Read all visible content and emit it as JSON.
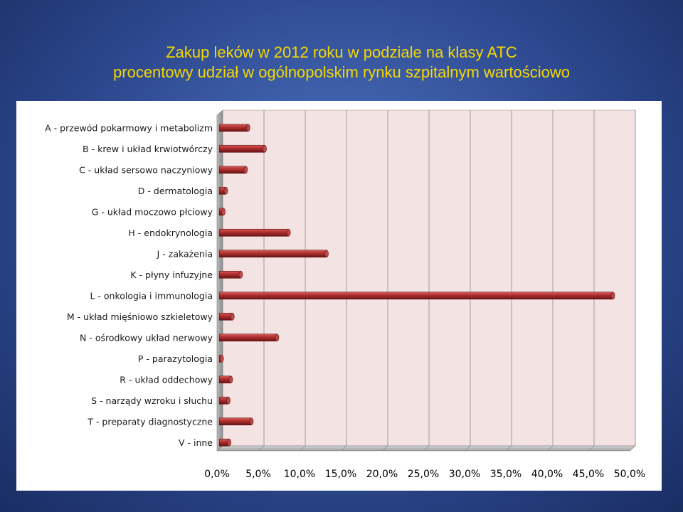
{
  "title": {
    "line1": "Zakup leków w 2012 roku w podziale na klasy ATC",
    "line2": "procentowy udział w ogólnopolskim rynku szpitalnym wartościowo"
  },
  "colors": {
    "title": "#f5d800",
    "bar": "#a82a2a",
    "plot_background": "#f3e3e3",
    "slide_background": "#3d5ea9"
  },
  "chart_data": {
    "type": "bar",
    "orientation": "horizontal",
    "style": "3d-cylinder",
    "categories": [
      "A - przewód pokarmowy i metabolizm",
      "B - krew i układ krwiotwórczy",
      "C - układ sersowo naczyniowy",
      "D - dermatologia",
      "G - układ moczowo płciowy",
      "H - endokrynologia",
      "J - zakażenia",
      "K - płyny infuzyjne",
      "L - onkologia i immunologia",
      "M - układ mięśniowo szkieletowy",
      "N - ośrodkowy układ nerwowy",
      "P - parazytologia",
      "R - układ oddechowy",
      "S - narządy wzroku i słuchu",
      "T - preparaty diagnostyczne",
      "V - inne"
    ],
    "values": [
      3.5,
      5.5,
      3.2,
      0.8,
      0.5,
      8.4,
      13.0,
      2.6,
      47.7,
      1.6,
      7.0,
      0.3,
      1.4,
      1.1,
      3.9,
      1.2
    ],
    "x_ticks": [
      "0,0%",
      "5,0%",
      "10,0%",
      "15,0%",
      "20,0%",
      "25,0%",
      "30,0%",
      "35,0%",
      "40,0%",
      "45,0%",
      "50,0%"
    ],
    "xlim": [
      0,
      50
    ],
    "grid": true,
    "legend": "none"
  }
}
